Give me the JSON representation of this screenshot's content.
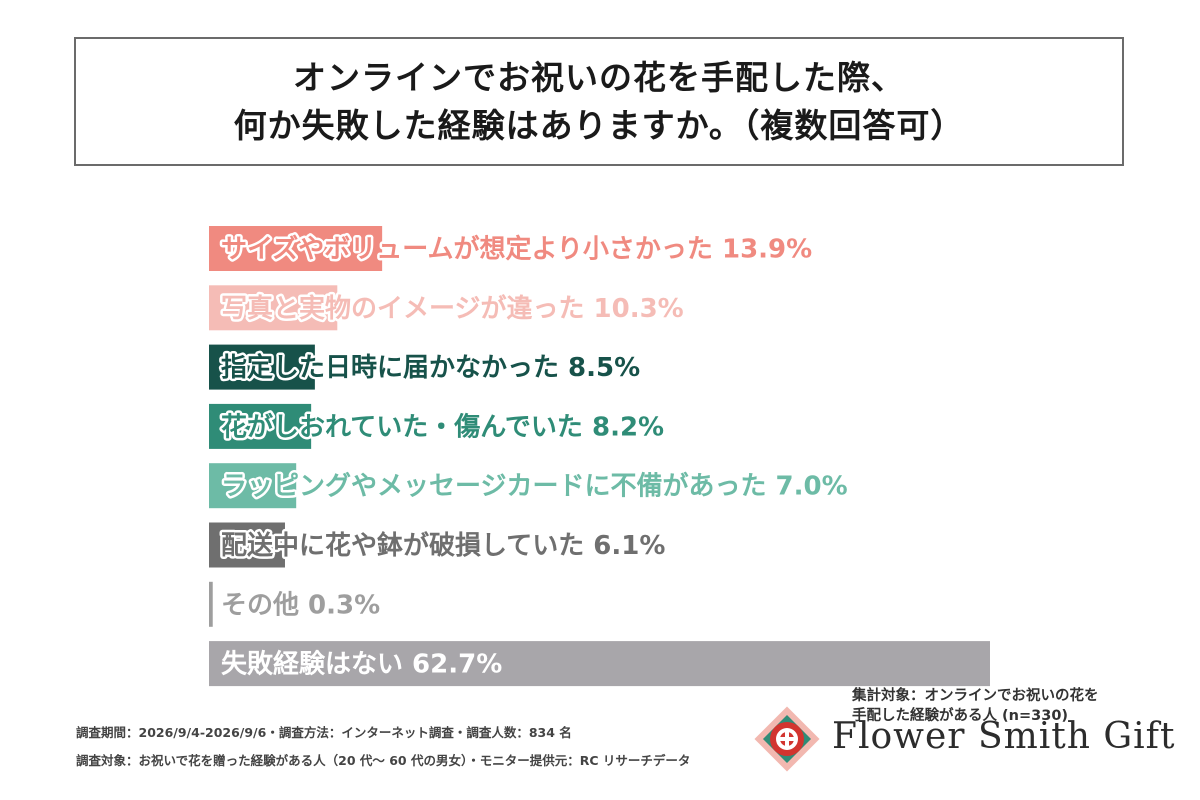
{
  "title": {
    "line1": "オンラインでお祝いの花を手配した際、",
    "line2": "何か失敗した経験はありますか。（複数回答可）"
  },
  "chart_data": {
    "type": "bar",
    "orientation": "horizontal",
    "categories": [
      "サイズやボリュームが想定より小さかった",
      "写真と実物のイメージが違った",
      "指定した日時に届かなかった",
      "花がしおれていた・傷んでいた",
      "ラッピングやメッセージカードに不備があった",
      "配送中に花や鉢が破損していた",
      "その他",
      "失敗経験はない"
    ],
    "values": [
      13.9,
      10.3,
      8.5,
      8.2,
      7.0,
      6.1,
      0.3,
      62.7
    ],
    "value_labels": [
      "13.9%",
      "10.3%",
      "8.5%",
      "8.2%",
      "7.0%",
      "6.1%",
      "0.3%",
      "62.7%"
    ],
    "colors": [
      "#f08a80",
      "#f5bcb6",
      "#17524a",
      "#2f8c77",
      "#6dbba6",
      "#6f6f6f",
      "#9e9e9e",
      "#a8a6aa"
    ],
    "label_colors": [
      "#f08a80",
      "#f5bcb6",
      "#17524a",
      "#2f8c77",
      "#6dbba6",
      "#6f6f6f",
      "#9e9e9e",
      "#ffffff"
    ],
    "label_outline": [
      "#ffffff",
      "#ffffff",
      "#ffffff",
      "#ffffff",
      "#ffffff",
      "#ffffff",
      "#ffffff",
      "none"
    ],
    "xlim": [
      0,
      62.7
    ],
    "grid": false,
    "legend": "none"
  },
  "note": {
    "line1": "集計対象：オンラインでお祝いの花を",
    "line2": "手配した経験がある人 (n=330)"
  },
  "footer": {
    "line1": "調査期間：2026/9/4-2026/9/6・調査方法：インターネット調査・調査人数：834 名",
    "line2": "調査対象：お祝いで花を贈った経験がある人（20 代〜 60 代の男女）・モニター提供元：RC リサーチデータ"
  },
  "brand": {
    "name": "Flower Smith Gift",
    "logo_icon": "flower-emblem-icon",
    "colors": {
      "red": "#d2342f",
      "green": "#2f8c77",
      "pink": "#f2b8b0"
    }
  }
}
